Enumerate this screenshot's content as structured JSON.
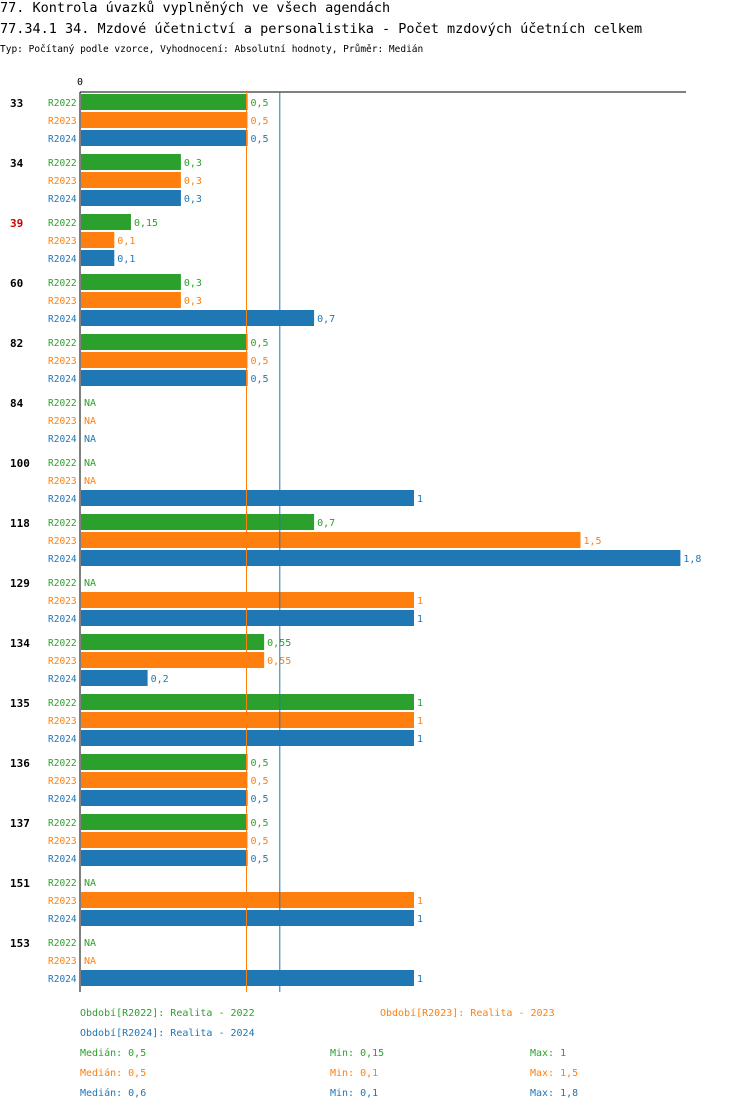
{
  "header": {
    "title1": "77. Kontrola úvazků vyplněných ve všech agendách",
    "title2": "77.34.1 34. Mzdové účetnictví a personalistika - Počet mzdových účetních celkem",
    "subtitle": "Typ: Počítaný podle vzorce, Vyhodnocení: Absolutní hodnoty, Průměr: Medián"
  },
  "chart_data": {
    "type": "bar",
    "orientation": "horizontal",
    "axis_zero_label": "0",
    "xlim": [
      0,
      1.8
    ],
    "series": [
      {
        "name": "R2022",
        "color": "#2ca02c"
      },
      {
        "name": "R2023",
        "color": "#ff7f0e"
      },
      {
        "name": "R2024",
        "color": "#1f77b4"
      }
    ],
    "categories": [
      {
        "label": "33",
        "highlight": false,
        "values": [
          "0,5",
          "0,5",
          "0,5"
        ]
      },
      {
        "label": "34",
        "highlight": false,
        "values": [
          "0,3",
          "0,3",
          "0,3"
        ]
      },
      {
        "label": "39",
        "highlight": true,
        "values": [
          "0,15",
          "0,1",
          "0,1"
        ]
      },
      {
        "label": "60",
        "highlight": false,
        "values": [
          "0,3",
          "0,3",
          "0,7"
        ]
      },
      {
        "label": "82",
        "highlight": false,
        "values": [
          "0,5",
          "0,5",
          "0,5"
        ]
      },
      {
        "label": "84",
        "highlight": false,
        "values": [
          "NA",
          "NA",
          "NA"
        ]
      },
      {
        "label": "100",
        "highlight": false,
        "values": [
          "NA",
          "NA",
          "1"
        ]
      },
      {
        "label": "118",
        "highlight": false,
        "values": [
          "0,7",
          "1,5",
          "1,8"
        ]
      },
      {
        "label": "129",
        "highlight": false,
        "values": [
          "NA",
          "1",
          "1"
        ]
      },
      {
        "label": "134",
        "highlight": false,
        "values": [
          "0,55",
          "0,55",
          "0,2"
        ]
      },
      {
        "label": "135",
        "highlight": false,
        "values": [
          "1",
          "1",
          "1"
        ]
      },
      {
        "label": "136",
        "highlight": false,
        "values": [
          "0,5",
          "0,5",
          "0,5"
        ]
      },
      {
        "label": "137",
        "highlight": false,
        "values": [
          "0,5",
          "0,5",
          "0,5"
        ]
      },
      {
        "label": "151",
        "highlight": false,
        "values": [
          "NA",
          "1",
          "1"
        ]
      },
      {
        "label": "153",
        "highlight": false,
        "values": [
          "NA",
          "NA",
          "1"
        ]
      }
    ],
    "reference_lines": [
      {
        "series": "R2023",
        "value": 0.5,
        "color": "#ff7f0e"
      },
      {
        "series": "R2024",
        "value": 0.6,
        "color": "#1f77b4"
      }
    ],
    "legend": {
      "r2022": "Období[R2022]: Realita - 2022",
      "r2023": "Období[R2023]: Realita - 2023",
      "r2024": "Období[R2024]: Realita - 2024"
    },
    "stats": [
      {
        "median": "Medián: 0,5",
        "min": "Min: 0,15",
        "max": "Max: 1"
      },
      {
        "median": "Medián: 0,5",
        "min": "Min: 0,1",
        "max": "Max: 1,5"
      },
      {
        "median": "Medián: 0,6",
        "min": "Min: 0,1",
        "max": "Max: 1,8"
      }
    ]
  }
}
